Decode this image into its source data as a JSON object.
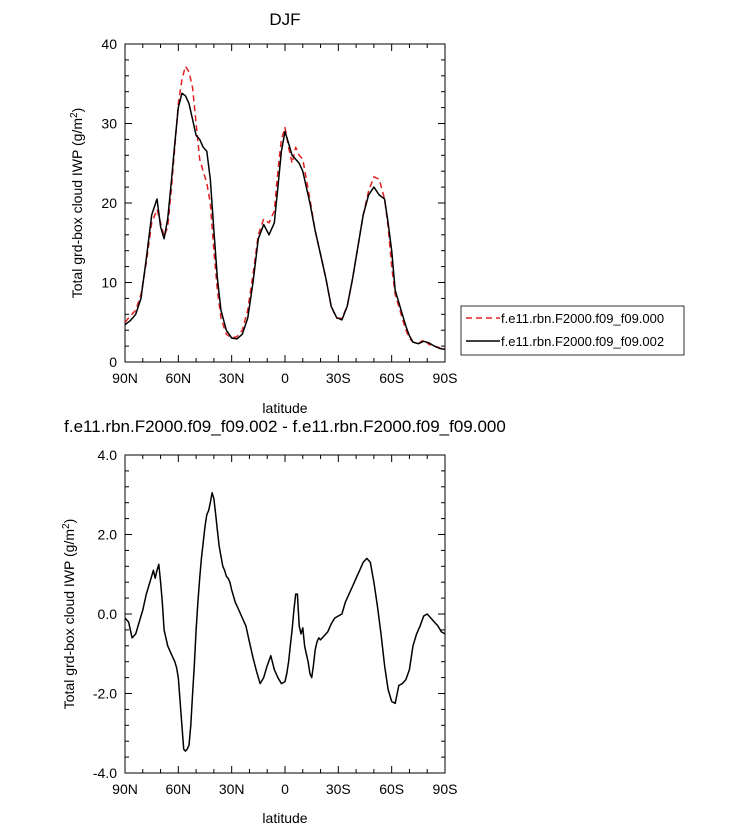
{
  "chart_data": [
    {
      "type": "line",
      "title": "DJF",
      "xlabel": "latitude",
      "ylabel": "Total grd-box cloud IWP (g/m²)",
      "ylabel_main": "Total grd-box cloud IWP (g/m",
      "ylabel_sup": "2",
      "ylabel_end": ")",
      "xlim": [
        90,
        -90
      ],
      "ylim": [
        0,
        40
      ],
      "x_ticks": [
        90,
        60,
        30,
        0,
        -30,
        -60,
        -90
      ],
      "x_tick_labels": [
        "90N",
        "60N",
        "30N",
        "0",
        "30S",
        "60S",
        "90S"
      ],
      "y_ticks": [
        0,
        10,
        20,
        30,
        40
      ],
      "y_tick_labels": [
        "0",
        "10",
        "20",
        "30",
        "40"
      ],
      "legend": "right",
      "series": [
        {
          "name": "f.e11.rbn.F2000.f09_f09.000",
          "color": "#e02020",
          "dash": "dashed",
          "x": [
            90,
            87,
            84,
            81,
            78,
            75,
            72,
            70,
            68,
            66,
            64,
            62,
            60,
            58,
            56,
            54,
            52,
            50,
            48,
            46,
            44,
            42,
            40,
            38,
            36,
            33,
            30,
            27,
            24,
            21,
            18,
            15,
            12,
            9,
            6,
            4,
            2,
            0,
            -2,
            -4,
            -6,
            -8,
            -10,
            -12,
            -14,
            -17,
            -20,
            -23,
            -26,
            -29,
            -32,
            -35,
            -38,
            -41,
            -44,
            -47,
            -50,
            -53,
            -56,
            -58,
            -60,
            -62,
            -64,
            -66,
            -68,
            -70,
            -72,
            -75,
            -78,
            -81,
            -84,
            -87,
            -90
          ],
          "y": [
            5.0,
            5.8,
            6.5,
            8.5,
            12.5,
            17.5,
            19.2,
            17.5,
            15.8,
            17.0,
            21.5,
            27.0,
            32.5,
            35.5,
            37.2,
            36.5,
            34.5,
            30.0,
            25.5,
            24.0,
            22.5,
            20.0,
            14.0,
            9.0,
            5.5,
            3.5,
            3.0,
            3.2,
            4.0,
            6.5,
            11.0,
            16.0,
            18.0,
            17.5,
            19.0,
            24.0,
            28.0,
            29.5,
            27.0,
            25.0,
            27.0,
            26.0,
            25.5,
            23.0,
            20.5,
            16.5,
            13.5,
            10.5,
            7.0,
            5.5,
            5.5,
            7.0,
            10.5,
            14.5,
            18.5,
            21.5,
            23.3,
            23.0,
            20.5,
            17.0,
            12.0,
            8.5,
            7.0,
            5.5,
            4.0,
            3.0,
            2.5,
            2.3,
            2.8,
            2.2,
            2.0,
            1.8,
            1.7
          ]
        },
        {
          "name": "f.e11.rbn.F2000.f09_f09.002",
          "color": "#000000",
          "dash": "solid",
          "x": [
            90,
            87,
            84,
            81,
            78,
            75,
            72,
            70,
            68,
            66,
            64,
            62,
            60,
            58,
            56,
            54,
            52,
            50,
            48,
            46,
            44,
            42,
            40,
            38,
            36,
            33,
            30,
            27,
            24,
            21,
            18,
            15,
            12,
            9,
            6,
            4,
            2,
            0,
            -2,
            -4,
            -6,
            -8,
            -10,
            -12,
            -14,
            -17,
            -20,
            -23,
            -26,
            -29,
            -32,
            -35,
            -38,
            -41,
            -44,
            -47,
            -50,
            -53,
            -56,
            -58,
            -60,
            -62,
            -64,
            -66,
            -68,
            -70,
            -72,
            -75,
            -78,
            -81,
            -84,
            -87,
            -90
          ],
          "y": [
            4.7,
            5.2,
            6.0,
            8.0,
            13.0,
            18.5,
            20.5,
            17.0,
            15.5,
            18.0,
            22.5,
            27.5,
            32.0,
            33.8,
            33.5,
            32.5,
            30.5,
            28.5,
            28.0,
            27.0,
            26.5,
            23.0,
            16.5,
            10.5,
            6.5,
            4.0,
            3.0,
            2.9,
            3.5,
            5.5,
            10.0,
            15.5,
            17.3,
            16.0,
            17.5,
            22.0,
            26.5,
            29.0,
            27.5,
            26.0,
            25.5,
            25.0,
            24.0,
            22.0,
            20.0,
            16.5,
            13.5,
            10.5,
            7.0,
            5.6,
            5.3,
            7.0,
            10.5,
            14.5,
            18.5,
            21.0,
            22.0,
            21.0,
            20.5,
            17.5,
            14.0,
            9.0,
            7.5,
            6.0,
            4.5,
            3.3,
            2.5,
            2.3,
            2.6,
            2.4,
            2.0,
            1.7,
            1.6
          ]
        }
      ]
    },
    {
      "type": "line",
      "title": "f.e11.rbn.F2000.f09_f09.002 - f.e11.rbn.F2000.f09_f09.000",
      "xlabel": "latitude",
      "ylabel": "Total grd-box cloud IWP (g/m²)",
      "ylabel_main": "Total grd-box cloud IWP (g/m",
      "ylabel_sup": "2",
      "ylabel_end": ")",
      "xlim": [
        90,
        -90
      ],
      "ylim": [
        -4,
        4
      ],
      "x_ticks": [
        90,
        60,
        30,
        0,
        -30,
        -60,
        -90
      ],
      "x_tick_labels": [
        "90N",
        "60N",
        "30N",
        "0",
        "30S",
        "60S",
        "90S"
      ],
      "y_ticks": [
        -4,
        -2,
        0,
        2,
        4
      ],
      "y_tick_labels": [
        "-4.0",
        "-2.0",
        "0.0",
        "2.0",
        "4.0"
      ],
      "series": [
        {
          "color": "#000000",
          "dash": "solid",
          "x": [
            90,
            88,
            86,
            84,
            82,
            80,
            78,
            76,
            74,
            73,
            72,
            71,
            70,
            69,
            68,
            66,
            64,
            62,
            61,
            60,
            59,
            58,
            57,
            56,
            55,
            54,
            53,
            52,
            51,
            50,
            49,
            48,
            47,
            46,
            45,
            44,
            43,
            42,
            41,
            40,
            39,
            38,
            37,
            36,
            35,
            34,
            33,
            32,
            31,
            30,
            28,
            26,
            24,
            22,
            20,
            18,
            16,
            14,
            12,
            10,
            8,
            6,
            4,
            2,
            0,
            -1,
            -2,
            -3,
            -4,
            -5,
            -6,
            -7,
            -8,
            -9,
            -10,
            -11,
            -12,
            -13,
            -14,
            -15,
            -16,
            -17,
            -18,
            -19,
            -20,
            -22,
            -24,
            -26,
            -28,
            -30,
            -32,
            -34,
            -36,
            -38,
            -40,
            -42,
            -44,
            -46,
            -48,
            -50,
            -52,
            -54,
            -56,
            -58,
            -60,
            -62,
            -64,
            -66,
            -68,
            -70,
            -72,
            -74,
            -76,
            -78,
            -80,
            -82,
            -84,
            -86,
            -88,
            -90
          ],
          "y": [
            -0.1,
            -0.2,
            -0.6,
            -0.5,
            -0.2,
            0.1,
            0.5,
            0.8,
            1.1,
            0.9,
            1.1,
            1.25,
            0.8,
            0.3,
            -0.4,
            -0.8,
            -1.0,
            -1.2,
            -1.35,
            -1.6,
            -2.2,
            -2.8,
            -3.4,
            -3.45,
            -3.4,
            -3.3,
            -2.8,
            -2.0,
            -1.3,
            -0.4,
            0.3,
            0.9,
            1.4,
            1.8,
            2.2,
            2.5,
            2.6,
            2.8,
            3.05,
            2.9,
            2.5,
            2.1,
            1.7,
            1.45,
            1.2,
            1.1,
            0.95,
            0.9,
            0.8,
            0.6,
            0.3,
            0.1,
            -0.1,
            -0.3,
            -0.7,
            -1.1,
            -1.45,
            -1.75,
            -1.6,
            -1.3,
            -1.05,
            -1.4,
            -1.6,
            -1.75,
            -1.7,
            -1.5,
            -1.2,
            -0.8,
            -0.4,
            0.1,
            0.5,
            0.5,
            -0.3,
            -0.5,
            -0.35,
            -0.8,
            -1.0,
            -1.2,
            -1.5,
            -1.6,
            -1.3,
            -0.9,
            -0.7,
            -0.6,
            -0.65,
            -0.55,
            -0.45,
            -0.25,
            -0.1,
            -0.05,
            0.0,
            0.3,
            0.5,
            0.7,
            0.9,
            1.1,
            1.3,
            1.4,
            1.3,
            0.8,
            0.2,
            -0.5,
            -1.3,
            -1.9,
            -2.2,
            -2.25,
            -1.8,
            -1.75,
            -1.65,
            -1.4,
            -0.8,
            -0.5,
            -0.3,
            -0.05,
            0.0,
            -0.1,
            -0.2,
            -0.3,
            -0.45,
            -0.5
          ]
        }
      ]
    }
  ]
}
